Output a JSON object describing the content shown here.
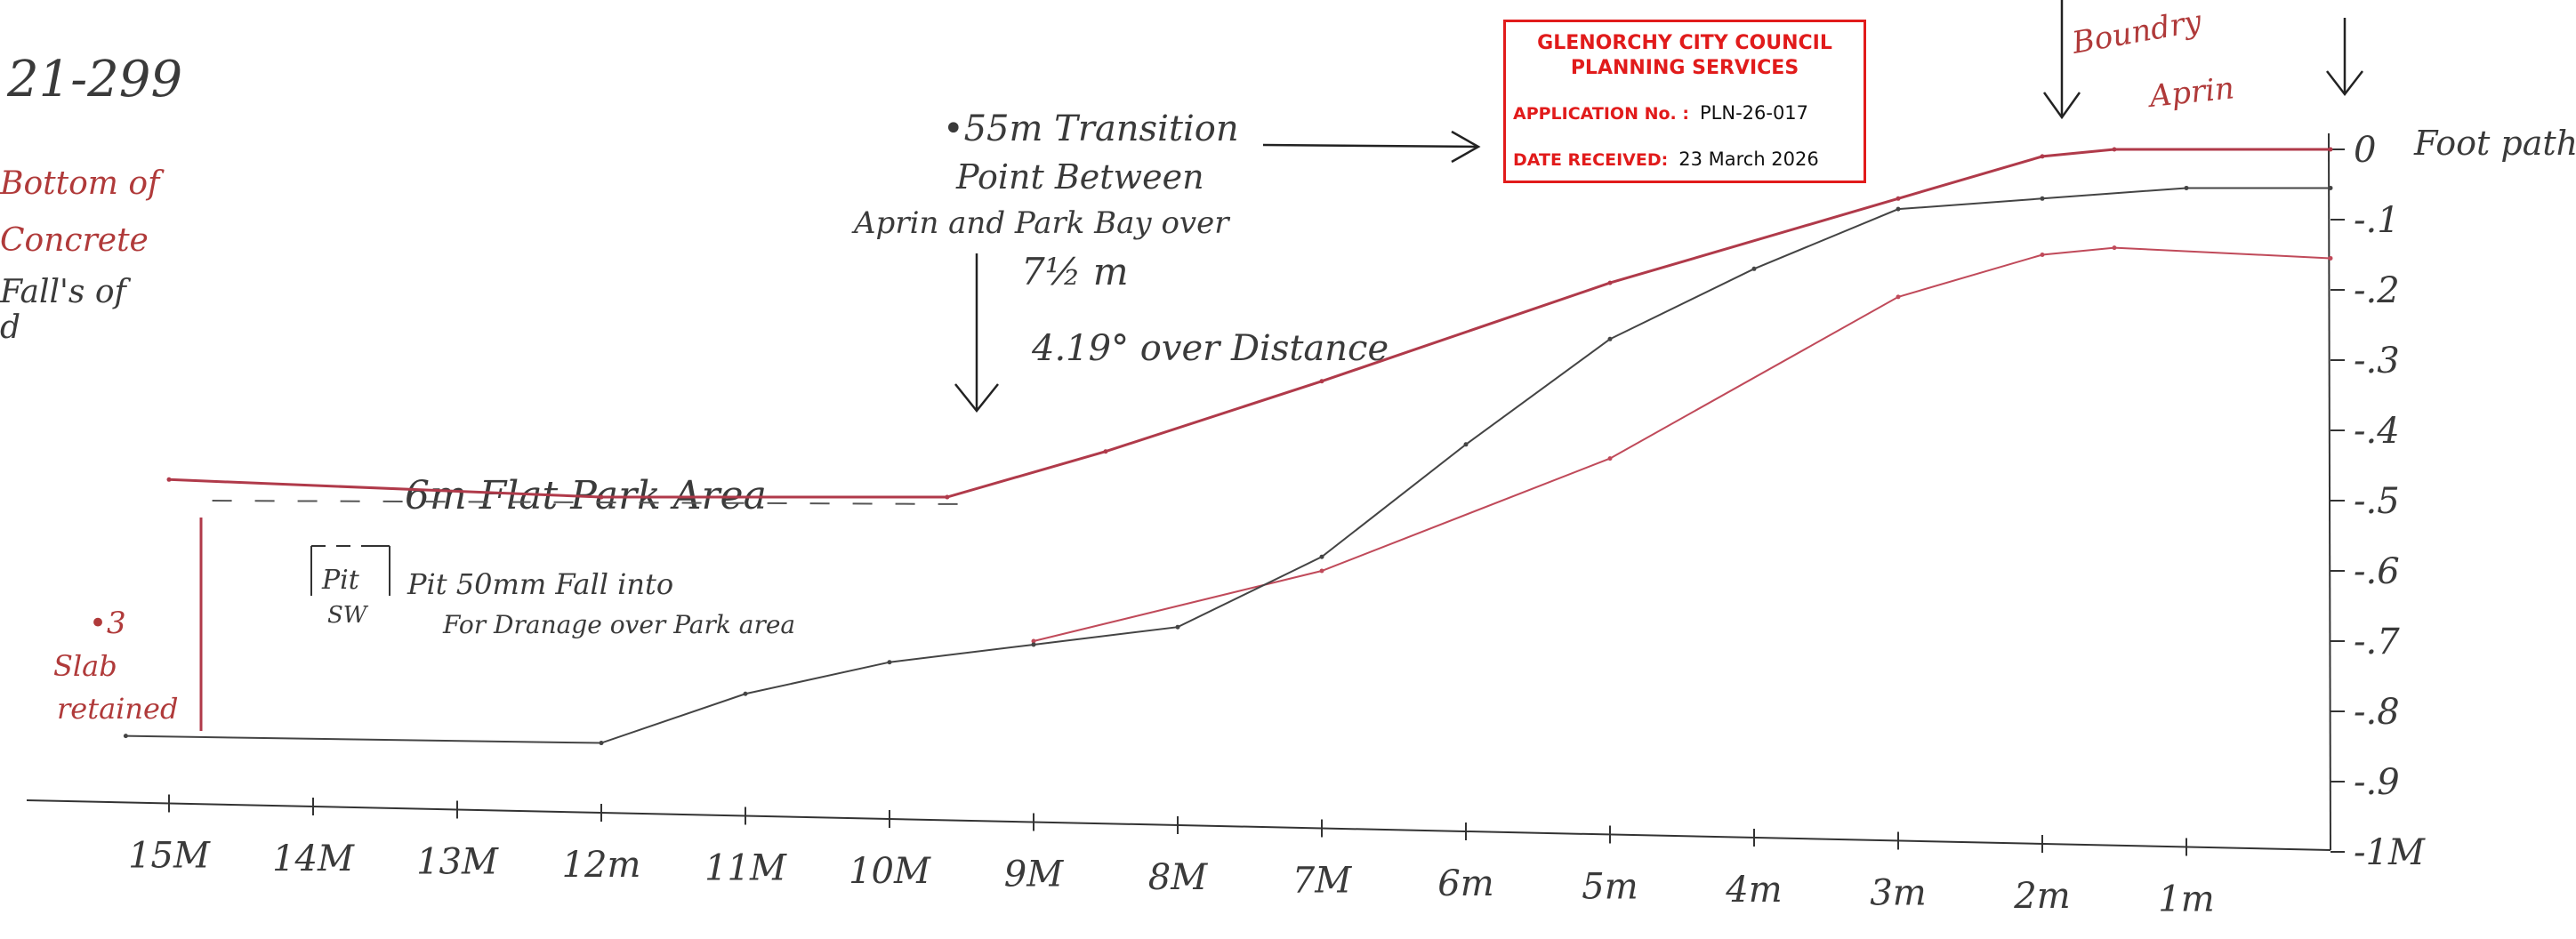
{
  "sheet": {
    "ref_number": "21-299",
    "left_notes": [
      "Bottom of",
      "Concrete",
      "Fall's of",
      "d"
    ],
    "transition_note": [
      "•55m Transition",
      "Point Between",
      "Aprin and Park Bay over",
      "7½ m"
    ],
    "angle_note": "4.19° over Distance",
    "flat_area_label": "6m  Flat Park Area",
    "pit_label": [
      "Pit",
      "SW"
    ],
    "pit_note": [
      "Pit 50mm Fall into",
      "For Dranage over Park area"
    ],
    "slab_note": [
      "•3",
      "Slab",
      "retained"
    ],
    "boundary_label": "Boundry",
    "apron_label": "Aprin",
    "footpath_label": "Foot path"
  },
  "stamp": {
    "title_line1": "GLENORCHY CITY COUNCIL",
    "title_line2": "PLANNING SERVICES",
    "application_label": "APPLICATION No. :",
    "application_no": "PLN-26-017",
    "date_label": "DATE RECEIVED:",
    "date_received": "23 March 2026"
  },
  "chart_data": {
    "type": "line",
    "x_axis": {
      "unit": "m from footpath",
      "ticks": [
        15,
        14,
        13,
        12,
        11,
        10,
        9,
        8,
        7,
        6,
        5,
        4,
        3,
        2,
        1
      ],
      "tick_labels": [
        "15M",
        "14M",
        "13M",
        "12m",
        "11M",
        "10M",
        "9M",
        "8M",
        "7M",
        "6m",
        "5m",
        "4m",
        "3m",
        "2m",
        "1m"
      ]
    },
    "y_axis": {
      "unit": "m depth below footpath",
      "ticks": [
        0,
        0.1,
        0.2,
        0.3,
        0.4,
        0.5,
        0.6,
        0.7,
        0.8,
        0.9,
        1.0
      ],
      "tick_labels": [
        "0",
        "-.1",
        "-.2",
        "-.3",
        "-.4",
        "-.5",
        "-.6",
        "-.7",
        "-.8",
        "-.9",
        "-1M"
      ]
    },
    "series": [
      {
        "color": "#b03a4a",
        "points": [
          [
            15.0,
            0.47
          ],
          [
            12.0,
            0.495
          ],
          [
            9.6,
            0.495
          ],
          [
            8.5,
            0.43
          ],
          [
            7.0,
            0.33
          ],
          [
            5.0,
            0.19
          ],
          [
            3.0,
            0.07
          ],
          [
            2.0,
            0.01
          ],
          [
            1.5,
            0.0
          ],
          [
            0.0,
            0.0
          ]
        ]
      },
      {
        "color": "#c04a5a",
        "points": [
          [
            9.0,
            0.7
          ],
          [
            7.0,
            0.6
          ],
          [
            5.0,
            0.44
          ],
          [
            3.0,
            0.21
          ],
          [
            2.0,
            0.15
          ],
          [
            1.5,
            0.14
          ],
          [
            0.0,
            0.155
          ]
        ]
      },
      {
        "color": "#444444",
        "points": [
          [
            15.3,
            0.835
          ],
          [
            12.0,
            0.845
          ],
          [
            11.0,
            0.775
          ],
          [
            10.0,
            0.73
          ],
          [
            9.0,
            0.705
          ],
          [
            8.0,
            0.68
          ],
          [
            7.0,
            0.58
          ],
          [
            6.0,
            0.42
          ],
          [
            5.0,
            0.27
          ],
          [
            4.0,
            0.17
          ],
          [
            3.0,
            0.085
          ],
          [
            2.0,
            0.07
          ],
          [
            1.0,
            0.055
          ],
          [
            0.0,
            0.055
          ]
        ]
      },
      {
        "color": "#555555",
        "points": [
          [
            14.7,
            0.5
          ],
          [
            9.5,
            0.505
          ]
        ]
      }
    ]
  }
}
